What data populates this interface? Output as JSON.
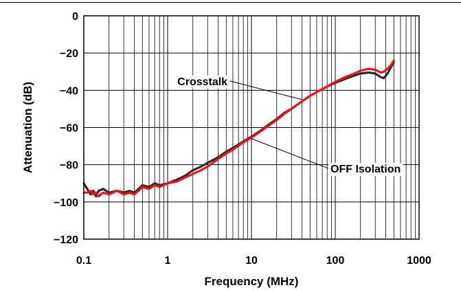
{
  "chart_data": {
    "type": "line",
    "title": "",
    "xlabel": "Frequency (MHz)",
    "ylabel": "Attenuation (dB)",
    "x_scale": "log",
    "xlim": [
      0.1,
      1000
    ],
    "ylim": [
      -120,
      0
    ],
    "x_ticks": [
      0.1,
      1,
      10,
      100,
      1000
    ],
    "x_tick_labels": [
      "0.1",
      "1",
      "10",
      "100",
      "1000"
    ],
    "y_ticks": [
      0,
      -20,
      -40,
      -60,
      -80,
      -100,
      -120
    ],
    "y_tick_labels": [
      "0",
      "−20",
      "−40",
      "−60",
      "−80",
      "−100",
      "−120"
    ],
    "grid": true,
    "legend": "none",
    "series": [
      {
        "name": "Crosstalk",
        "color": "#2b2b2b",
        "points": [
          [
            0.1,
            -90
          ],
          [
            0.11,
            -93
          ],
          [
            0.12,
            -96
          ],
          [
            0.13,
            -94
          ],
          [
            0.14,
            -97
          ],
          [
            0.15,
            -94
          ],
          [
            0.17,
            -93
          ],
          [
            0.2,
            -95
          ],
          [
            0.25,
            -94
          ],
          [
            0.3,
            -95
          ],
          [
            0.35,
            -94
          ],
          [
            0.4,
            -95
          ],
          [
            0.45,
            -93
          ],
          [
            0.5,
            -91
          ],
          [
            0.6,
            -92
          ],
          [
            0.7,
            -90
          ],
          [
            0.8,
            -91
          ],
          [
            1,
            -90
          ],
          [
            1.3,
            -88
          ],
          [
            1.6,
            -86
          ],
          [
            2,
            -83
          ],
          [
            2.5,
            -81
          ],
          [
            3,
            -79
          ],
          [
            4,
            -76
          ],
          [
            5,
            -73
          ],
          [
            6,
            -71
          ],
          [
            8,
            -67.5
          ],
          [
            10,
            -65
          ],
          [
            13,
            -61.5
          ],
          [
            16,
            -58.5
          ],
          [
            20,
            -55.5
          ],
          [
            25,
            -52
          ],
          [
            30,
            -50
          ],
          [
            40,
            -46
          ],
          [
            50,
            -43
          ],
          [
            60,
            -41
          ],
          [
            80,
            -38
          ],
          [
            100,
            -36
          ],
          [
            130,
            -34
          ],
          [
            160,
            -32.5
          ],
          [
            200,
            -31
          ],
          [
            250,
            -30.5
          ],
          [
            300,
            -31
          ],
          [
            350,
            -33
          ],
          [
            380,
            -33.5
          ],
          [
            420,
            -31
          ],
          [
            470,
            -27
          ],
          [
            500,
            -25
          ]
        ]
      },
      {
        "name": "OFF Isolation",
        "color": "#e8161c",
        "points": [
          [
            0.1,
            -95
          ],
          [
            0.11,
            -95
          ],
          [
            0.12,
            -94
          ],
          [
            0.13,
            -96
          ],
          [
            0.14,
            -95
          ],
          [
            0.15,
            -97
          ],
          [
            0.17,
            -95
          ],
          [
            0.2,
            -96
          ],
          [
            0.25,
            -94
          ],
          [
            0.3,
            -96
          ],
          [
            0.35,
            -95
          ],
          [
            0.4,
            -96
          ],
          [
            0.45,
            -94
          ],
          [
            0.5,
            -92
          ],
          [
            0.6,
            -93
          ],
          [
            0.7,
            -91
          ],
          [
            0.8,
            -92
          ],
          [
            1,
            -90
          ],
          [
            1.3,
            -89
          ],
          [
            1.6,
            -87
          ],
          [
            2,
            -85
          ],
          [
            2.5,
            -83
          ],
          [
            3,
            -81
          ],
          [
            4,
            -77
          ],
          [
            5,
            -74
          ],
          [
            6,
            -72
          ],
          [
            8,
            -68
          ],
          [
            10,
            -65.5
          ],
          [
            13,
            -62
          ],
          [
            16,
            -59
          ],
          [
            20,
            -56
          ],
          [
            25,
            -52.5
          ],
          [
            30,
            -50
          ],
          [
            40,
            -46
          ],
          [
            50,
            -43
          ],
          [
            60,
            -41
          ],
          [
            80,
            -38
          ],
          [
            100,
            -35.5
          ],
          [
            130,
            -33
          ],
          [
            160,
            -31.5
          ],
          [
            200,
            -29.5
          ],
          [
            250,
            -28.5
          ],
          [
            300,
            -29
          ],
          [
            350,
            -30.5
          ],
          [
            380,
            -30
          ],
          [
            420,
            -28.5
          ],
          [
            470,
            -26
          ],
          [
            500,
            -24
          ]
        ]
      }
    ],
    "annotations": [
      {
        "text": "Crosstalk",
        "x": 2.6,
        "y": -35,
        "target_x": 40,
        "target_y": -45
      },
      {
        "text": "OFF Isolation",
        "x": 230,
        "y": -82,
        "target_x": 10,
        "target_y": -66
      }
    ]
  }
}
